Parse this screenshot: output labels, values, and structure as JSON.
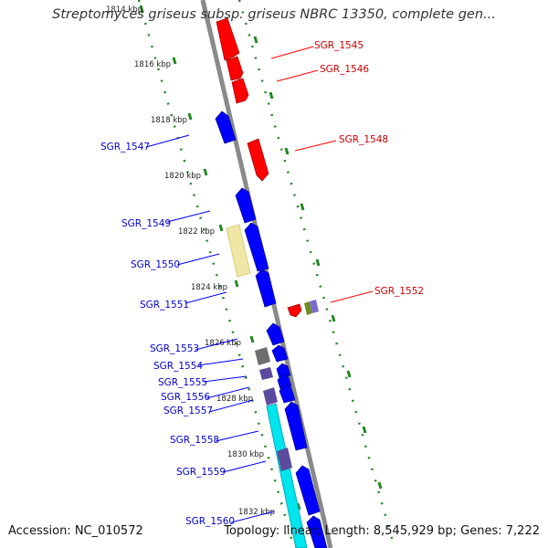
{
  "title": "Streptomyces griseus subsp. griseus NBRC 13350, complete gen...",
  "accession_text": "Accession: NC_010572",
  "summary_text": "Topology: linear; Length: 8,545,929 bp; Genes: 7,222",
  "colors": {
    "forward_gene": "#ff0000",
    "reverse_gene": "#0000ff",
    "backbone": "#888888",
    "tick": "#228822",
    "highlight": "#f0e6a6",
    "cyan_track": "#00e5ee",
    "gray_block": "#6e6e6e",
    "purple_block": "#5c4a9c",
    "olive_block": "#6b8e23"
  },
  "kbp_labels": [
    "1814 kbp",
    "1816 kbp",
    "1818 kbp",
    "1820 kbp",
    "1822 kbp",
    "1824 kbp",
    "1826 kbp",
    "1828 kbp",
    "1830 kbp",
    "1832 kbp"
  ],
  "right_genes": [
    "SGR_1545",
    "SGR_1546",
    "SGR_1548",
    "SGR_1552"
  ],
  "left_genes": [
    "SGR_1547",
    "SGR_1549",
    "SGR_1550",
    "SGR_1551",
    "SGR_1553",
    "SGR_1554",
    "SGR_1555",
    "SGR_1556",
    "SGR_1557",
    "SGR_1558",
    "SGR_1559",
    "SGR_1560"
  ]
}
